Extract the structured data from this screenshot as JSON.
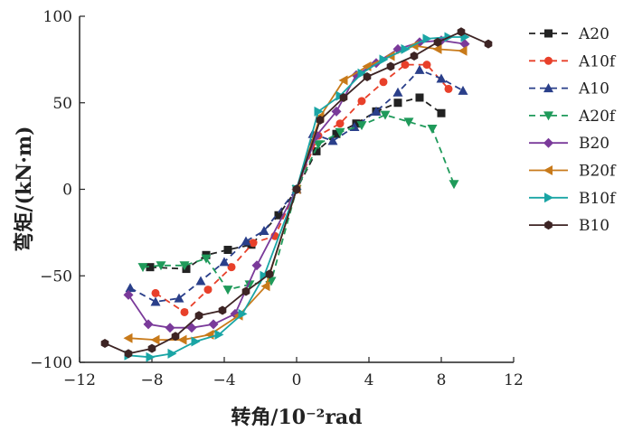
{
  "chart_data": {
    "type": "line",
    "title": "",
    "xlabel": "转角/10⁻²rad",
    "ylabel": "弯矩/(kN·m)",
    "xlim": [
      -12,
      12
    ],
    "ylim": [
      -100,
      100
    ],
    "xticks": [
      -12,
      -8,
      -4,
      0,
      4,
      8,
      12
    ],
    "xtick_labels": [
      "−12",
      "−8",
      "−4",
      "0",
      "4",
      "8",
      "12"
    ],
    "yticks": [
      -100,
      -50,
      0,
      50,
      100
    ],
    "ytick_labels": [
      "−100",
      "−50",
      "0",
      "50",
      "100"
    ],
    "grid": false,
    "legend_position": "right",
    "series": [
      {
        "name": "A20",
        "color": "#222222",
        "dash": true,
        "marker": "square",
        "x": [
          -8.1,
          -6.1,
          -5.0,
          -3.8,
          -2.5,
          -1.0,
          0,
          1.1,
          2.2,
          3.3,
          4.4,
          5.6,
          6.8,
          8.0
        ],
        "y": [
          -45,
          -46,
          -38,
          -35,
          -32,
          -15,
          0,
          22,
          32,
          38,
          45,
          50,
          53,
          44
        ]
      },
      {
        "name": "A10f",
        "color": "#e8402a",
        "dash": true,
        "marker": "circle",
        "x": [
          -7.8,
          -6.2,
          -4.9,
          -3.6,
          -2.4,
          -1.2,
          0,
          1.2,
          2.4,
          3.6,
          4.8,
          6.0,
          7.2,
          8.4
        ],
        "y": [
          -60,
          -71,
          -58,
          -45,
          -31,
          -27,
          0,
          31,
          38,
          51,
          62,
          72,
          72,
          58
        ]
      },
      {
        "name": "A10",
        "color": "#2a3f8a",
        "dash": true,
        "marker": "triangle-up",
        "x": [
          -9.2,
          -7.8,
          -6.5,
          -5.3,
          -4.0,
          -2.8,
          -1.8,
          0,
          0.9,
          2.0,
          3.2,
          4.4,
          5.6,
          6.8,
          8.0,
          9.2
        ],
        "y": [
          -57,
          -65,
          -63,
          -53,
          -42,
          -30,
          -24,
          0,
          32,
          28,
          36,
          45,
          56,
          69,
          64,
          57
        ]
      },
      {
        "name": "A20f",
        "color": "#1f9a5a",
        "dash": true,
        "marker": "triangle-down",
        "x": [
          -8.5,
          -7.5,
          -6.2,
          -5.0,
          -3.8,
          -2.6,
          -1.4,
          0,
          1.2,
          2.4,
          3.6,
          4.9,
          6.2,
          7.5,
          8.7
        ],
        "y": [
          -45,
          -44,
          -44,
          -40,
          -58,
          -55,
          -53,
          0,
          26,
          33,
          37,
          43,
          39,
          35,
          3
        ]
      },
      {
        "name": "B20",
        "color": "#7a3a9a",
        "dash": false,
        "marker": "diamond",
        "x": [
          -9.3,
          -8.2,
          -7.0,
          -5.8,
          -4.6,
          -3.4,
          -2.2,
          0,
          1.1,
          2.2,
          3.3,
          4.4,
          5.6,
          6.8,
          8.0,
          9.3
        ],
        "y": [
          -61,
          -78,
          -80,
          -80,
          -78,
          -72,
          -44,
          0,
          31,
          45,
          66,
          73,
          81,
          85,
          86,
          84
        ]
      },
      {
        "name": "B20f",
        "color": "#c87a1a",
        "dash": false,
        "marker": "triangle-left",
        "x": [
          -9.3,
          -7.8,
          -6.3,
          -4.8,
          -3.2,
          -1.7,
          0,
          1.3,
          2.6,
          3.9,
          5.2,
          6.5,
          7.8,
          9.2
        ],
        "y": [
          -86,
          -87,
          -87,
          -84,
          -73,
          -56,
          0,
          42,
          63,
          71,
          77,
          83,
          81,
          80
        ]
      },
      {
        "name": "B10f",
        "color": "#1aa5a5",
        "dash": false,
        "marker": "triangle-right",
        "x": [
          -9.3,
          -8.1,
          -6.9,
          -5.6,
          -4.3,
          -3.0,
          -1.8,
          0,
          1.2,
          2.4,
          3.6,
          4.8,
          6.0,
          7.2,
          8.4,
          9.3
        ],
        "y": [
          -96,
          -97,
          -95,
          -88,
          -84,
          -72,
          -50,
          0,
          45,
          54,
          67,
          75,
          81,
          87,
          88,
          88
        ]
      },
      {
        "name": "B10",
        "color": "#3d2424",
        "dash": false,
        "marker": "hexagon",
        "x": [
          -10.6,
          -9.3,
          -8.0,
          -6.7,
          -5.4,
          -4.1,
          -2.8,
          -1.5,
          0,
          1.3,
          2.6,
          3.9,
          5.2,
          6.5,
          7.8,
          9.1,
          10.6
        ],
        "y": [
          -89,
          -95,
          -92,
          -85,
          -73,
          -70,
          -59,
          -49,
          0,
          40,
          53,
          65,
          71,
          77,
          85,
          91,
          84
        ]
      }
    ]
  }
}
